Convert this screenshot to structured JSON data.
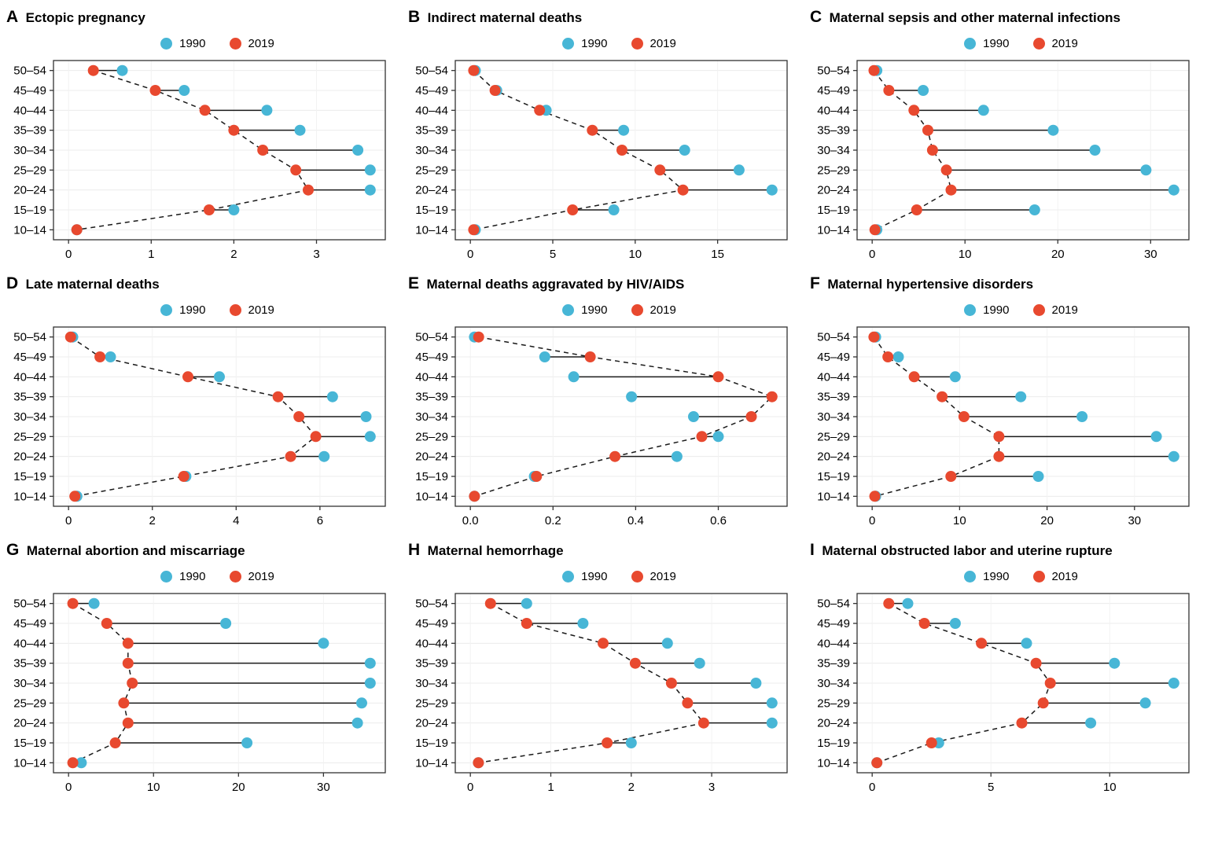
{
  "colors": {
    "blue": "#47b6d6",
    "red": "#e8492f",
    "grid": "#ececec",
    "grid_v": "#f2f2f2",
    "axis": "#333333",
    "line": "#1a1a1a"
  },
  "legend": {
    "labels": [
      "1990",
      "2019"
    ]
  },
  "age_groups": [
    "50–54",
    "45–49",
    "40–44",
    "35–39",
    "30–34",
    "25–29",
    "20–24",
    "15–19",
    "10–14"
  ],
  "chart_data": [
    {
      "panel": "A",
      "title": "Ectopic pregnancy",
      "type": "dumbbell",
      "categories": [
        "50–54",
        "45–49",
        "40–44",
        "35–39",
        "30–34",
        "25–29",
        "20–24",
        "15–19",
        "10–14"
      ],
      "series": [
        {
          "name": "1990",
          "values": [
            0.65,
            1.4,
            2.4,
            2.8,
            3.5,
            3.65,
            3.65,
            2.0,
            0.1
          ]
        },
        {
          "name": "2019",
          "values": [
            0.3,
            1.05,
            1.65,
            2.0,
            2.35,
            2.75,
            2.9,
            1.7,
            0.1
          ]
        }
      ],
      "xticks": [
        0,
        1,
        2,
        3
      ],
      "xtick_labels": [
        "0",
        "1",
        "2",
        "3"
      ],
      "xlim": [
        0,
        3.65
      ]
    },
    {
      "panel": "B",
      "title": "Indirect maternal deaths",
      "type": "dumbbell",
      "categories": [
        "50–54",
        "45–49",
        "40–44",
        "35–39",
        "30–34",
        "25–29",
        "20–24",
        "15–19",
        "10–14"
      ],
      "series": [
        {
          "name": "1990",
          "values": [
            0.3,
            1.6,
            4.6,
            9.3,
            13.0,
            16.3,
            18.3,
            8.7,
            0.3
          ]
        },
        {
          "name": "2019",
          "values": [
            0.2,
            1.5,
            4.2,
            7.4,
            9.2,
            11.5,
            12.9,
            6.2,
            0.2
          ]
        }
      ],
      "xticks": [
        0,
        5,
        10,
        15
      ],
      "xtick_labels": [
        "0",
        "5",
        "10",
        "15"
      ],
      "xlim": [
        0,
        18.3
      ]
    },
    {
      "panel": "C",
      "title": "Maternal sepsis and other maternal infections",
      "type": "dumbbell",
      "categories": [
        "50–54",
        "45–49",
        "40–44",
        "35–39",
        "30–34",
        "25–29",
        "20–24",
        "15–19",
        "10–14"
      ],
      "series": [
        {
          "name": "1990",
          "values": [
            0.5,
            5.5,
            12.0,
            19.5,
            24.0,
            29.5,
            32.5,
            17.5,
            0.5
          ]
        },
        {
          "name": "2019",
          "values": [
            0.2,
            1.8,
            4.5,
            6.0,
            6.5,
            8.0,
            8.5,
            4.8,
            0.3
          ]
        }
      ],
      "xticks": [
        0,
        10,
        20,
        30
      ],
      "xtick_labels": [
        "0",
        "10",
        "20",
        "30"
      ],
      "xlim": [
        0,
        32.5
      ]
    },
    {
      "panel": "D",
      "title": "Late maternal deaths",
      "type": "dumbbell",
      "categories": [
        "50–54",
        "45–49",
        "40–44",
        "35–39",
        "30–34",
        "25–29",
        "20–24",
        "15–19",
        "10–14"
      ],
      "series": [
        {
          "name": "1990",
          "values": [
            0.1,
            1.0,
            3.6,
            6.3,
            7.1,
            7.2,
            6.1,
            2.8,
            0.2
          ]
        },
        {
          "name": "2019",
          "values": [
            0.05,
            0.75,
            2.85,
            5.0,
            5.5,
            5.9,
            5.3,
            2.75,
            0.15
          ]
        }
      ],
      "xticks": [
        0,
        2,
        4,
        6
      ],
      "xtick_labels": [
        "0",
        "2",
        "4",
        "6"
      ],
      "xlim": [
        0,
        7.2
      ]
    },
    {
      "panel": "E",
      "title": "Maternal deaths aggravated by HIV/AIDS",
      "type": "dumbbell",
      "categories": [
        "50–54",
        "45–49",
        "40–44",
        "35–39",
        "30–34",
        "25–29",
        "20–24",
        "15–19",
        "10–14"
      ],
      "series": [
        {
          "name": "1990",
          "values": [
            0.01,
            0.18,
            0.25,
            0.39,
            0.54,
            0.6,
            0.5,
            0.155,
            0.01
          ]
        },
        {
          "name": "2019",
          "values": [
            0.02,
            0.29,
            0.6,
            0.73,
            0.68,
            0.56,
            0.35,
            0.16,
            0.01
          ]
        }
      ],
      "xticks": [
        0,
        0.2,
        0.4,
        0.6
      ],
      "xtick_labels": [
        "0.0",
        "0.2",
        "0.4",
        "0.6"
      ],
      "xlim": [
        0,
        0.73
      ]
    },
    {
      "panel": "F",
      "title": "Maternal hypertensive disorders",
      "type": "dumbbell",
      "categories": [
        "50–54",
        "45–49",
        "40–44",
        "35–39",
        "30–34",
        "25–29",
        "20–24",
        "15–19",
        "10–14"
      ],
      "series": [
        {
          "name": "1990",
          "values": [
            0.4,
            3.0,
            9.5,
            17.0,
            24.0,
            32.5,
            34.5,
            19.0,
            0.4
          ]
        },
        {
          "name": "2019",
          "values": [
            0.2,
            1.8,
            4.8,
            8.0,
            10.5,
            14.5,
            14.5,
            9.0,
            0.3
          ]
        }
      ],
      "xticks": [
        0,
        10,
        20,
        30
      ],
      "xtick_labels": [
        "0",
        "10",
        "20",
        "30"
      ],
      "xlim": [
        0,
        34.5
      ]
    },
    {
      "panel": "G",
      "title": "Maternal abortion and miscarriage",
      "type": "dumbbell",
      "categories": [
        "50–54",
        "45–49",
        "40–44",
        "35–39",
        "30–34",
        "25–29",
        "20–24",
        "15–19",
        "10–14"
      ],
      "series": [
        {
          "name": "1990",
          "values": [
            3.0,
            18.5,
            30.0,
            35.5,
            35.5,
            34.5,
            34.0,
            21.0,
            1.5
          ]
        },
        {
          "name": "2019",
          "values": [
            0.5,
            4.5,
            7.0,
            7.0,
            7.5,
            6.5,
            7.0,
            5.5,
            0.5
          ]
        }
      ],
      "xticks": [
        0,
        10,
        20,
        30
      ],
      "xtick_labels": [
        "0",
        "10",
        "20",
        "30"
      ],
      "xlim": [
        0,
        35.5
      ]
    },
    {
      "panel": "H",
      "title": "Maternal hemorrhage",
      "type": "dumbbell",
      "categories": [
        "50–54",
        "45–49",
        "40–44",
        "35–39",
        "30–34",
        "25–29",
        "20–24",
        "15–19",
        "10–14"
      ],
      "series": [
        {
          "name": "1990",
          "values": [
            0.7,
            1.4,
            2.45,
            2.85,
            3.55,
            3.75,
            3.75,
            2.0,
            0.1
          ]
        },
        {
          "name": "2019",
          "values": [
            0.25,
            0.7,
            1.65,
            2.05,
            2.5,
            2.7,
            2.9,
            1.7,
            0.1
          ]
        }
      ],
      "xticks": [
        0,
        1,
        2,
        3
      ],
      "xtick_labels": [
        "0",
        "1",
        "2",
        "3"
      ],
      "xlim": [
        0,
        3.75
      ]
    },
    {
      "panel": "I",
      "title": "Maternal obstructed labor and uterine rupture",
      "type": "dumbbell",
      "categories": [
        "50–54",
        "45–49",
        "40–44",
        "35–39",
        "30–34",
        "25–29",
        "20–24",
        "15–19",
        "10–14"
      ],
      "series": [
        {
          "name": "1990",
          "values": [
            1.5,
            3.5,
            6.5,
            10.2,
            12.7,
            11.5,
            9.2,
            2.8,
            0.2
          ]
        },
        {
          "name": "2019",
          "values": [
            0.7,
            2.2,
            4.6,
            6.9,
            7.5,
            7.2,
            6.3,
            2.5,
            0.2
          ]
        }
      ],
      "xticks": [
        0,
        5,
        10
      ],
      "xtick_labels": [
        "0",
        "5",
        "10"
      ],
      "xlim": [
        0,
        12.7
      ]
    }
  ]
}
